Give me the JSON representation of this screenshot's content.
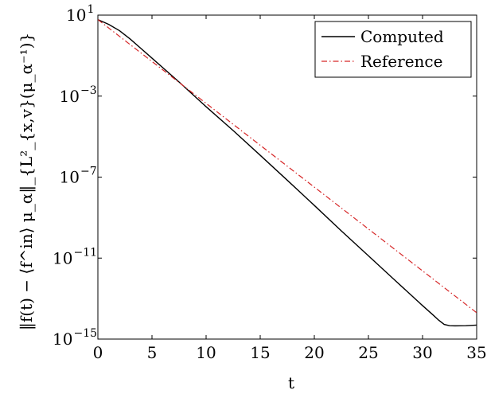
{
  "chart_data": {
    "type": "line",
    "title": "",
    "xlabel": "t",
    "ylabel": "‖f(t) − ⟨f^in⟩ μ_α‖_{L²_{x,v}(μ_α⁻¹)}",
    "xlim": [
      0,
      35
    ],
    "ylim": [
      1e-15,
      10
    ],
    "yscale": "log",
    "grid": false,
    "legend_position": "top-right",
    "x_ticks": [
      {
        "value": 0,
        "label": "0"
      },
      {
        "value": 5,
        "label": "5"
      },
      {
        "value": 10,
        "label": "10"
      },
      {
        "value": 15,
        "label": "15"
      },
      {
        "value": 20,
        "label": "20"
      },
      {
        "value": 25,
        "label": "25"
      },
      {
        "value": 30,
        "label": "30"
      },
      {
        "value": 35,
        "label": "35"
      }
    ],
    "y_ticks": [
      {
        "value": 10,
        "base": "10",
        "exp": "1"
      },
      {
        "value": 0.001,
        "base": "10",
        "exp": "−3"
      },
      {
        "value": 1e-07,
        "base": "10",
        "exp": "−7"
      },
      {
        "value": 1e-11,
        "base": "10",
        "exp": "−11"
      },
      {
        "value": 1e-15,
        "base": "10",
        "exp": "−15"
      }
    ],
    "series": [
      {
        "name": "Computed",
        "color": "#000000",
        "style": "solid",
        "x": [
          0,
          1,
          2,
          3,
          4,
          5,
          7.5,
          10,
          12.5,
          15,
          17.5,
          20,
          22.5,
          25,
          27.5,
          30,
          31,
          31.5,
          32,
          32.5,
          33,
          34,
          35
        ],
        "y": [
          6,
          3.5,
          1.7,
          0.65,
          0.22,
          0.075,
          0.005,
          0.0003,
          2e-05,
          1.2e-06,
          7e-08,
          4e-09,
          2.2e-10,
          1.3e-11,
          7.6e-13,
          4.5e-14,
          1.5e-14,
          8.5e-15,
          5.3e-15,
          4.6e-15,
          4.5e-15,
          4.6e-15,
          4.9e-15
        ]
      },
      {
        "name": "Reference",
        "color": "#d62728",
        "style": "dash-dot",
        "x": [
          0,
          35
        ],
        "y": [
          6,
          2e-14
        ]
      }
    ]
  }
}
